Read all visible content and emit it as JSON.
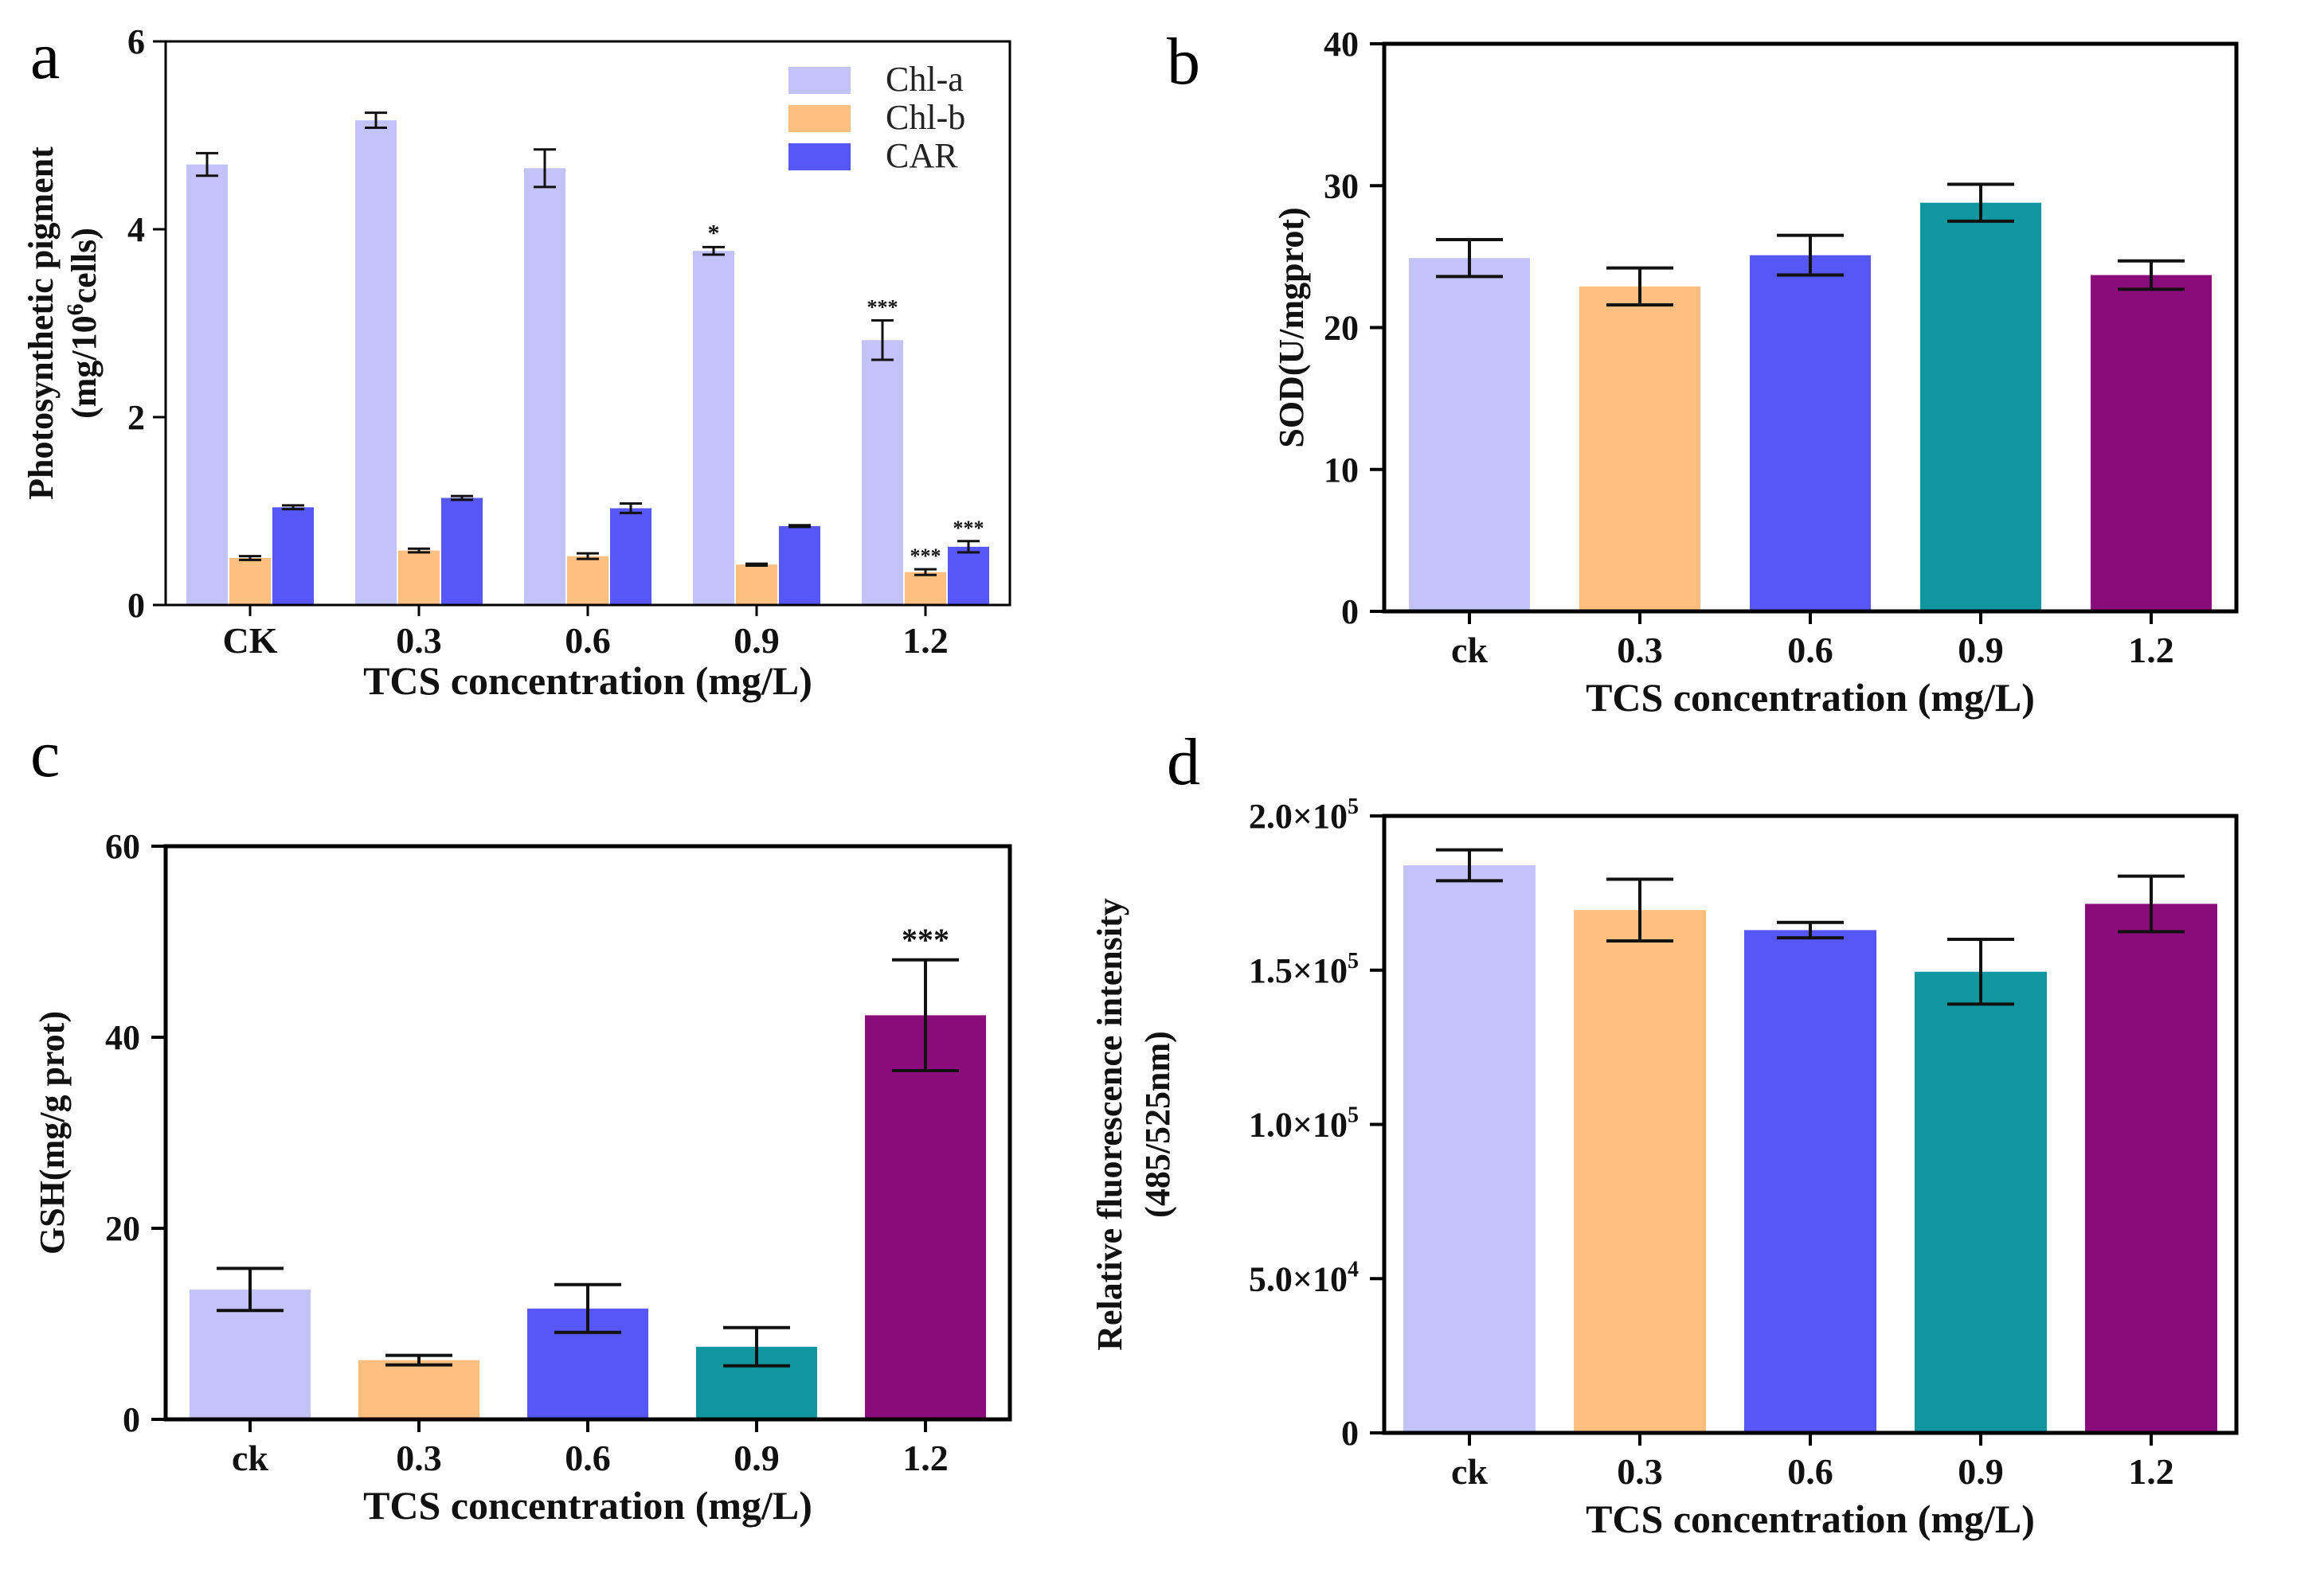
{
  "chart_data": [
    {
      "panel": "a",
      "type": "bar",
      "categories": [
        "CK",
        "0.3",
        "0.6",
        "0.9",
        "1.2"
      ],
      "series": [
        {
          "name": "Chl-a",
          "color": "#c3c3fa",
          "values": [
            4.69,
            5.16,
            4.65,
            3.77,
            2.82
          ],
          "errors": [
            0.12,
            0.08,
            0.2,
            0.04,
            0.21
          ],
          "sig": [
            "",
            "",
            "",
            "*",
            "***"
          ]
        },
        {
          "name": "Chl-b",
          "color": "#ffbf80",
          "values": [
            0.5,
            0.58,
            0.52,
            0.43,
            0.35
          ],
          "errors": [
            0.02,
            0.02,
            0.03,
            0.01,
            0.03
          ],
          "sig": [
            "",
            "",
            "",
            "",
            "***"
          ]
        },
        {
          "name": "CAR",
          "color": "#5757f7",
          "values": [
            1.04,
            1.14,
            1.03,
            0.84,
            0.62
          ],
          "errors": [
            0.02,
            0.02,
            0.05,
            0.01,
            0.06
          ],
          "sig": [
            "",
            "",
            "",
            "",
            "***"
          ]
        }
      ],
      "ylim": [
        0,
        6
      ],
      "yticks": [
        "0",
        "2",
        "4",
        "6"
      ],
      "ylabel_line1": "Photosynthetic pigment",
      "ylabel_line2_pre": "(mg/10",
      "ylabel_line2_sup": "6",
      "ylabel_line2_post": "cells)",
      "xlabel": "TCS concentration (mg/L)",
      "legend_position": "top-right"
    },
    {
      "panel": "b",
      "type": "bar",
      "categories": [
        "ck",
        "0.3",
        "0.6",
        "0.9",
        "1.2"
      ],
      "colors": [
        "#c3c3fa",
        "#ffbf80",
        "#5757f7",
        "#0f969f",
        "#8a0b7a"
      ],
      "values": [
        24.9,
        22.9,
        25.1,
        28.8,
        23.7
      ],
      "errors": [
        1.3,
        1.3,
        1.4,
        1.3,
        1.0
      ],
      "sig": [
        "",
        "",
        "",
        "",
        ""
      ],
      "ylim": [
        0,
        40
      ],
      "yticks": [
        "0",
        "10",
        "20",
        "30",
        "40"
      ],
      "ylabel": "SOD(U/mgprot)",
      "xlabel": "TCS concentration (mg/L)"
    },
    {
      "panel": "c",
      "type": "bar",
      "categories": [
        "ck",
        "0.3",
        "0.6",
        "0.9",
        "1.2"
      ],
      "colors": [
        "#c3c3fa",
        "#ffbf80",
        "#5757f7",
        "#0f969f",
        "#8a0b7a"
      ],
      "values": [
        13.6,
        6.2,
        11.6,
        7.6,
        42.3
      ],
      "errors": [
        2.2,
        0.5,
        2.5,
        2.0,
        5.8
      ],
      "sig": [
        "",
        "",
        "",
        "",
        "***"
      ],
      "ylim": [
        0,
        60
      ],
      "yticks": [
        "0",
        "20",
        "40",
        "60"
      ],
      "ylabel": "GSH(mg/g prot)",
      "xlabel": "TCS concentration (mg/L)"
    },
    {
      "panel": "d",
      "type": "bar",
      "categories": [
        "ck",
        "0.3",
        "0.6",
        "0.9",
        "1.2"
      ],
      "colors": [
        "#c3c3fa",
        "#ffbf80",
        "#5757f7",
        "#0f969f",
        "#8a0b7a"
      ],
      "values": [
        184000,
        169500,
        163000,
        149500,
        171500
      ],
      "errors": [
        5000,
        10000,
        2500,
        10500,
        9000
      ],
      "sig": [
        "",
        "",
        "",
        "",
        ""
      ],
      "ylim": [
        0,
        200000
      ],
      "yticks": [
        {
          "value": 0,
          "plain": "0"
        },
        {
          "value": 50000,
          "base": "5.0×10",
          "exp": "4"
        },
        {
          "value": 100000,
          "base": "1.0×10",
          "exp": "5"
        },
        {
          "value": 150000,
          "base": "1.5×10",
          "exp": "5"
        },
        {
          "value": 200000,
          "base": "2.0×10",
          "exp": "5"
        }
      ],
      "ylabel_line1": "Relative  fluorescence  intensity",
      "ylabel_line2": "(485/525nm)",
      "xlabel": "TCS concentration (mg/L)"
    }
  ]
}
